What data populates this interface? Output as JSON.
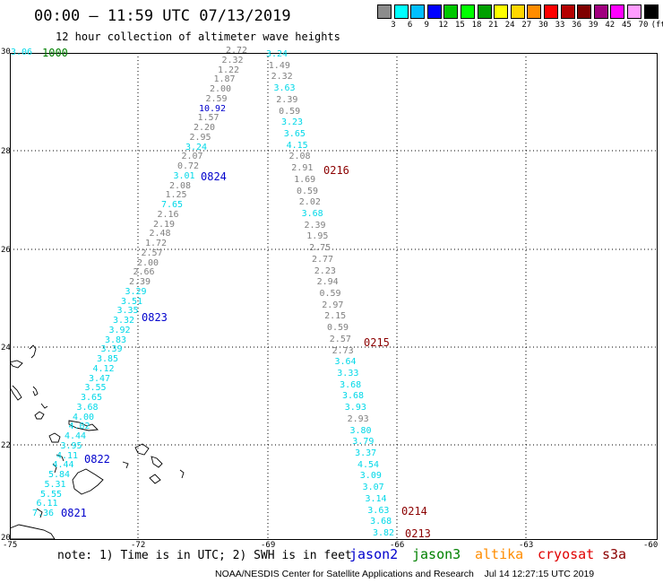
{
  "header": {
    "title": "00:00 – 11:59 UTC 07/13/2019",
    "subtitle": "12 hour collection of altimeter wave heights"
  },
  "legend": {
    "unit": "(ft)",
    "colors": [
      "#8c8c8c",
      "#00ffff",
      "#00bfff",
      "#0000ff",
      "#00c800",
      "#00ff00",
      "#00a000",
      "#ffff00",
      "#ffd700",
      "#ff8c00",
      "#ff0000",
      "#b40000",
      "#7f0000",
      "#a0007f",
      "#ff00ff",
      "#ff9cff",
      "#000000"
    ],
    "labels": [
      "3",
      "6",
      "9",
      "12",
      "15",
      "18",
      "21",
      "24",
      "27",
      "30",
      "33",
      "36",
      "39",
      "42",
      "45",
      "70"
    ]
  },
  "axes": {
    "x_ticks": [
      "-75",
      "-72",
      "-69",
      "-66",
      "-63",
      "-60"
    ],
    "y_ticks": [
      "30",
      "28",
      "26",
      "24",
      "22",
      "20"
    ]
  },
  "corner": {
    "cyan": "3.06",
    "green": "1000"
  },
  "colors": {
    "gray": "#808080",
    "cyan": "#00d8e8",
    "blue": "#0000cc",
    "darkred": "#8b0000",
    "green": "#008000",
    "orange": "#ff8c00",
    "red": "#e00000"
  },
  "track_west": {
    "values": [
      {
        "v": "2.72",
        "c": "gray"
      },
      {
        "v": "2.32",
        "c": "gray"
      },
      {
        "v": "1.22",
        "c": "gray"
      },
      {
        "v": "1.87",
        "c": "gray"
      },
      {
        "v": "2.00",
        "c": "gray"
      },
      {
        "v": "2.59",
        "c": "gray"
      },
      {
        "v": "10.92",
        "c": "blue"
      },
      {
        "v": "1.57",
        "c": "gray"
      },
      {
        "v": "2.20",
        "c": "gray"
      },
      {
        "v": "2.95",
        "c": "gray"
      },
      {
        "v": "3.24",
        "c": "cyan"
      },
      {
        "v": "2.07",
        "c": "gray"
      },
      {
        "v": "0.72",
        "c": "gray"
      },
      {
        "v": "3.01",
        "c": "cyan"
      },
      {
        "v": "2.08",
        "c": "gray"
      },
      {
        "v": "1.25",
        "c": "gray"
      },
      {
        "v": "7.65",
        "c": "cyan"
      },
      {
        "v": "2.16",
        "c": "gray"
      },
      {
        "v": "2.19",
        "c": "gray"
      },
      {
        "v": "2.48",
        "c": "gray"
      },
      {
        "v": "1.72",
        "c": "gray"
      },
      {
        "v": "2.57",
        "c": "gray"
      },
      {
        "v": "2.00",
        "c": "gray"
      },
      {
        "v": "2.66",
        "c": "gray"
      },
      {
        "v": "2.39",
        "c": "gray"
      },
      {
        "v": "3.29",
        "c": "cyan"
      },
      {
        "v": "3.51",
        "c": "cyan"
      },
      {
        "v": "3.35",
        "c": "cyan"
      },
      {
        "v": "3.32",
        "c": "cyan"
      },
      {
        "v": "3.92",
        "c": "cyan"
      },
      {
        "v": "3.83",
        "c": "cyan"
      },
      {
        "v": "3.39",
        "c": "cyan"
      },
      {
        "v": "3.85",
        "c": "cyan"
      },
      {
        "v": "4.12",
        "c": "cyan"
      },
      {
        "v": "3.47",
        "c": "cyan"
      },
      {
        "v": "3.55",
        "c": "cyan"
      },
      {
        "v": "3.65",
        "c": "cyan"
      },
      {
        "v": "3.68",
        "c": "cyan"
      },
      {
        "v": "4.00",
        "c": "cyan"
      },
      {
        "v": "4.02",
        "c": "cyan"
      },
      {
        "v": "4.44",
        "c": "cyan"
      },
      {
        "v": "3.95",
        "c": "cyan"
      },
      {
        "v": "4.11",
        "c": "cyan"
      },
      {
        "v": "4.44",
        "c": "cyan"
      },
      {
        "v": "5.84",
        "c": "cyan"
      },
      {
        "v": "5.31",
        "c": "cyan"
      },
      {
        "v": "5.55",
        "c": "cyan"
      },
      {
        "v": "6.11",
        "c": "cyan"
      },
      {
        "v": "7.36",
        "c": "cyan"
      }
    ],
    "times": [
      {
        "t": "0824",
        "c": "blue"
      },
      {
        "t": "0823",
        "c": "blue"
      },
      {
        "t": "0822",
        "c": "blue"
      },
      {
        "t": "0821",
        "c": "blue"
      }
    ]
  },
  "track_east": {
    "values": [
      {
        "v": "3.24",
        "c": "cyan"
      },
      {
        "v": "1.49",
        "c": "gray"
      },
      {
        "v": "2.32",
        "c": "gray"
      },
      {
        "v": "3.63",
        "c": "cyan"
      },
      {
        "v": "2.39",
        "c": "gray"
      },
      {
        "v": "0.59",
        "c": "gray"
      },
      {
        "v": "3.23",
        "c": "cyan"
      },
      {
        "v": "3.65",
        "c": "cyan"
      },
      {
        "v": "4.15",
        "c": "cyan"
      },
      {
        "v": "2.08",
        "c": "gray"
      },
      {
        "v": "2.91",
        "c": "gray"
      },
      {
        "v": "1.69",
        "c": "gray"
      },
      {
        "v": "0.59",
        "c": "gray"
      },
      {
        "v": "2.02",
        "c": "gray"
      },
      {
        "v": "3.68",
        "c": "cyan"
      },
      {
        "v": "2.39",
        "c": "gray"
      },
      {
        "v": "1.95",
        "c": "gray"
      },
      {
        "v": "2.75",
        "c": "gray"
      },
      {
        "v": "2.77",
        "c": "gray"
      },
      {
        "v": "2.23",
        "c": "gray"
      },
      {
        "v": "2.94",
        "c": "gray"
      },
      {
        "v": "0.59",
        "c": "gray"
      },
      {
        "v": "2.97",
        "c": "gray"
      },
      {
        "v": "2.15",
        "c": "gray"
      },
      {
        "v": "0.59",
        "c": "gray"
      },
      {
        "v": "2.57",
        "c": "gray"
      },
      {
        "v": "2.73",
        "c": "gray"
      },
      {
        "v": "3.64",
        "c": "cyan"
      },
      {
        "v": "3.33",
        "c": "cyan"
      },
      {
        "v": "3.68",
        "c": "cyan"
      },
      {
        "v": "3.68",
        "c": "cyan"
      },
      {
        "v": "3.93",
        "c": "cyan"
      },
      {
        "v": "2.93",
        "c": "gray"
      },
      {
        "v": "3.80",
        "c": "cyan"
      },
      {
        "v": "3.79",
        "c": "cyan"
      },
      {
        "v": "3.37",
        "c": "cyan"
      },
      {
        "v": "4.54",
        "c": "cyan"
      },
      {
        "v": "3.09",
        "c": "cyan"
      },
      {
        "v": "3.07",
        "c": "cyan"
      },
      {
        "v": "3.14",
        "c": "cyan"
      },
      {
        "v": "3.63",
        "c": "cyan"
      },
      {
        "v": "3.68",
        "c": "cyan"
      },
      {
        "v": "3.82",
        "c": "cyan"
      }
    ],
    "times": [
      {
        "t": "0216",
        "c": "darkred"
      },
      {
        "t": "0215",
        "c": "darkred"
      },
      {
        "t": "0214",
        "c": "darkred"
      },
      {
        "t": "0213",
        "c": "darkred"
      }
    ]
  },
  "note": "note: 1) Time is in UTC; 2) SWH is in feet",
  "satellites": [
    {
      "name": "jason2",
      "color": "#0000cc"
    },
    {
      "name": "jason3",
      "color": "#008000"
    },
    {
      "name": "altika",
      "color": "#ff8c00"
    },
    {
      "name": "cryosat",
      "color": "#e00000"
    },
    {
      "name": "s3a",
      "color": "#8b0000"
    }
  ],
  "footer": "NOAA/NESDIS Center for Satellite Applications and Research    Jul 14 12:27:15 UTC 2019"
}
